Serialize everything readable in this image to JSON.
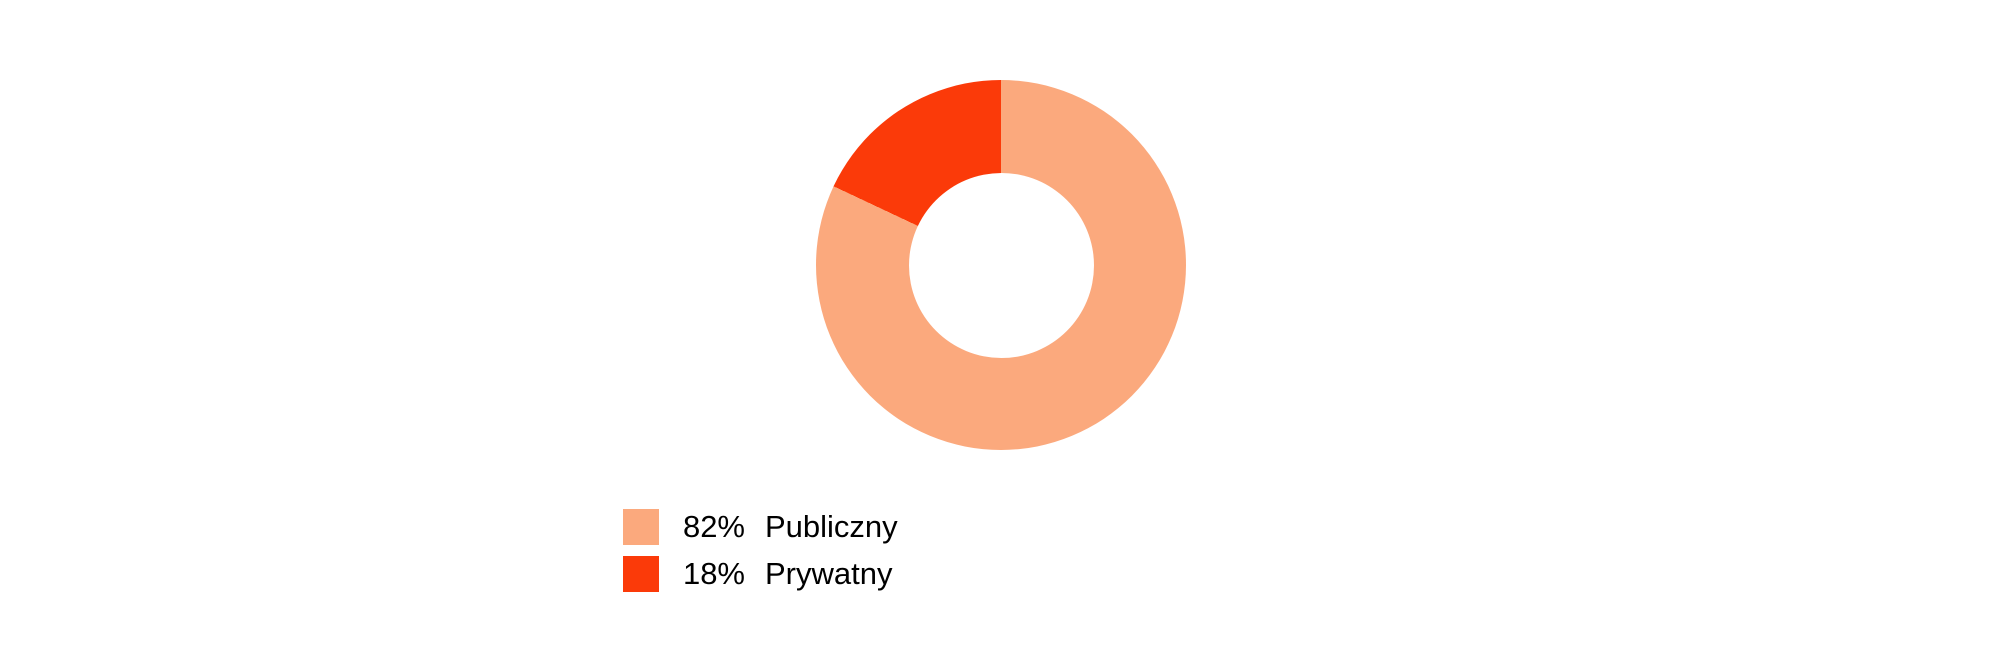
{
  "chart_data": {
    "type": "pie",
    "subtype": "donut",
    "hole_ratio": 0.5,
    "start_angle_deg": 0,
    "direction": "clockwise",
    "legend_position": "bottom-left",
    "background_color": "#ffffff",
    "text_color": "#000000",
    "segments": [
      {
        "label": "Publiczny",
        "value": 82,
        "percent_label": "82%",
        "color": "#FBA97D"
      },
      {
        "label": "Prywatny",
        "value": 18,
        "percent_label": "18%",
        "color": "#FB3A09"
      }
    ]
  }
}
